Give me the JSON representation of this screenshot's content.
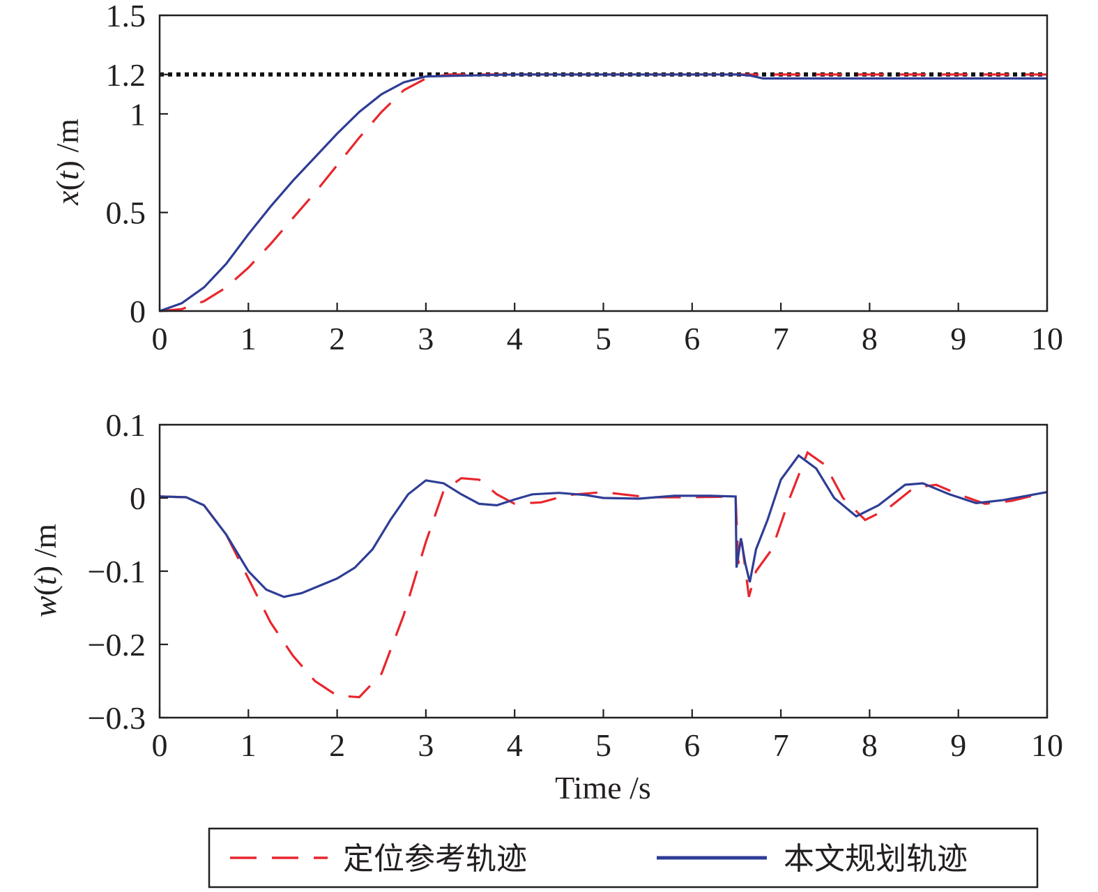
{
  "chart_data": [
    {
      "type": "line",
      "title": "",
      "xlabel": "",
      "ylabel": "x(t) /m",
      "ylabel_parts": {
        "var": "x",
        "open": "(",
        "arg": "t",
        "close": ")",
        "unit": " /m"
      },
      "xlim": [
        0,
        10
      ],
      "ylim": [
        0,
        1.5
      ],
      "x_ticks": [
        0,
        1,
        2,
        3,
        4,
        5,
        6,
        7,
        8,
        9,
        10
      ],
      "x_tick_labels": [
        "0",
        "1",
        "2",
        "3",
        "4",
        "5",
        "6",
        "7",
        "8",
        "9",
        "10"
      ],
      "y_ticks": [
        0,
        0.5,
        1,
        1.2,
        1.5
      ],
      "y_tick_labels": [
        "0",
        "0.5",
        "1",
        "1.2",
        "1.5"
      ],
      "reference_line": {
        "y": 1.2,
        "style": "dotted",
        "color": "#111111"
      },
      "series": [
        {
          "name": "定位参考轨迹",
          "style": "dashed",
          "color": "#e8262e",
          "points": [
            [
              0,
              0
            ],
            [
              0.25,
              0.01
            ],
            [
              0.5,
              0.05
            ],
            [
              0.75,
              0.12
            ],
            [
              1.0,
              0.22
            ],
            [
              1.25,
              0.34
            ],
            [
              1.5,
              0.47
            ],
            [
              1.75,
              0.6
            ],
            [
              2.0,
              0.74
            ],
            [
              2.25,
              0.88
            ],
            [
              2.5,
              1.01
            ],
            [
              2.75,
              1.12
            ],
            [
              3.0,
              1.18
            ],
            [
              3.25,
              1.2
            ],
            [
              3.5,
              1.2
            ],
            [
              4.0,
              1.2
            ],
            [
              5.0,
              1.2
            ],
            [
              6.0,
              1.2
            ],
            [
              6.5,
              1.2
            ],
            [
              6.7,
              1.2
            ],
            [
              7.0,
              1.2
            ],
            [
              8.0,
              1.2
            ],
            [
              9.0,
              1.2
            ],
            [
              10.0,
              1.2
            ]
          ]
        },
        {
          "name": "本文规划轨迹",
          "style": "solid",
          "color": "#2e3d95",
          "points": [
            [
              0,
              0
            ],
            [
              0.25,
              0.04
            ],
            [
              0.5,
              0.12
            ],
            [
              0.75,
              0.24
            ],
            [
              1.0,
              0.39
            ],
            [
              1.25,
              0.53
            ],
            [
              1.5,
              0.66
            ],
            [
              1.75,
              0.78
            ],
            [
              2.0,
              0.9
            ],
            [
              2.25,
              1.01
            ],
            [
              2.5,
              1.1
            ],
            [
              2.75,
              1.16
            ],
            [
              3.0,
              1.19
            ],
            [
              3.5,
              1.195
            ],
            [
              4.0,
              1.2
            ],
            [
              4.5,
              1.2
            ],
            [
              5.0,
              1.2
            ],
            [
              5.5,
              1.2
            ],
            [
              6.0,
              1.2
            ],
            [
              6.5,
              1.2
            ],
            [
              6.65,
              1.195
            ],
            [
              6.8,
              1.18
            ],
            [
              7.0,
              1.18
            ],
            [
              8.0,
              1.18
            ],
            [
              9.0,
              1.18
            ],
            [
              10.0,
              1.18
            ]
          ]
        }
      ]
    },
    {
      "type": "line",
      "title": "",
      "xlabel": "Time /s",
      "ylabel": "w(t) /m",
      "ylabel_parts": {
        "var": "w",
        "open": "(",
        "arg": "t",
        "close": ")",
        "unit": " /m"
      },
      "xlim": [
        0,
        10
      ],
      "ylim": [
        -0.3,
        0.1
      ],
      "x_ticks": [
        0,
        1,
        2,
        3,
        4,
        5,
        6,
        7,
        8,
        9,
        10
      ],
      "x_tick_labels": [
        "0",
        "1",
        "2",
        "3",
        "4",
        "5",
        "6",
        "7",
        "8",
        "9",
        "10"
      ],
      "y_ticks": [
        -0.3,
        -0.2,
        -0.1,
        0,
        0.1
      ],
      "y_tick_labels": [
        "−0.3",
        "−0.2",
        "−0.1",
        "0",
        "0.1"
      ],
      "series": [
        {
          "name": "定位参考轨迹",
          "style": "dashed",
          "color": "#e8262e",
          "points": [
            [
              0,
              0.002
            ],
            [
              0.3,
              0.001
            ],
            [
              0.5,
              -0.01
            ],
            [
              0.75,
              -0.05
            ],
            [
              1.0,
              -0.11
            ],
            [
              1.25,
              -0.17
            ],
            [
              1.5,
              -0.215
            ],
            [
              1.75,
              -0.25
            ],
            [
              2.0,
              -0.27
            ],
            [
              2.25,
              -0.272
            ],
            [
              2.5,
              -0.24
            ],
            [
              2.75,
              -0.16
            ],
            [
              3.0,
              -0.06
            ],
            [
              3.2,
              0.01
            ],
            [
              3.4,
              0.027
            ],
            [
              3.6,
              0.025
            ],
            [
              3.8,
              0.005
            ],
            [
              4.0,
              -0.008
            ],
            [
              4.3,
              -0.006
            ],
            [
              4.6,
              0.004
            ],
            [
              5.0,
              0.008
            ],
            [
              5.5,
              0.001
            ],
            [
              6.0,
              0.001
            ],
            [
              6.49,
              0.002
            ],
            [
              6.52,
              -0.09
            ],
            [
              6.56,
              -0.06
            ],
            [
              6.64,
              -0.135
            ],
            [
              6.72,
              -0.1
            ],
            [
              6.9,
              -0.07
            ],
            [
              7.1,
              0.0
            ],
            [
              7.3,
              0.062
            ],
            [
              7.5,
              0.045
            ],
            [
              7.7,
              0.0
            ],
            [
              7.95,
              -0.03
            ],
            [
              8.2,
              -0.015
            ],
            [
              8.5,
              0.014
            ],
            [
              8.75,
              0.018
            ],
            [
              9.0,
              0.005
            ],
            [
              9.3,
              -0.008
            ],
            [
              9.6,
              -0.004
            ],
            [
              10.0,
              0.008
            ]
          ]
        },
        {
          "name": "本文规划轨迹",
          "style": "solid",
          "color": "#2e3d95",
          "points": [
            [
              0,
              0.002
            ],
            [
              0.3,
              0.001
            ],
            [
              0.5,
              -0.01
            ],
            [
              0.75,
              -0.05
            ],
            [
              1.0,
              -0.1
            ],
            [
              1.2,
              -0.125
            ],
            [
              1.4,
              -0.135
            ],
            [
              1.6,
              -0.13
            ],
            [
              1.8,
              -0.12
            ],
            [
              2.0,
              -0.11
            ],
            [
              2.2,
              -0.095
            ],
            [
              2.4,
              -0.07
            ],
            [
              2.6,
              -0.03
            ],
            [
              2.8,
              0.005
            ],
            [
              3.0,
              0.024
            ],
            [
              3.2,
              0.02
            ],
            [
              3.4,
              0.005
            ],
            [
              3.6,
              -0.008
            ],
            [
              3.8,
              -0.01
            ],
            [
              4.0,
              -0.002
            ],
            [
              4.2,
              0.005
            ],
            [
              4.5,
              0.007
            ],
            [
              4.8,
              0.004
            ],
            [
              5.0,
              0.0
            ],
            [
              5.4,
              -0.001
            ],
            [
              5.8,
              0.003
            ],
            [
              6.2,
              0.003
            ],
            [
              6.49,
              0.002
            ],
            [
              6.5,
              -0.095
            ],
            [
              6.55,
              -0.055
            ],
            [
              6.6,
              -0.09
            ],
            [
              6.65,
              -0.115
            ],
            [
              6.72,
              -0.07
            ],
            [
              6.85,
              -0.03
            ],
            [
              7.0,
              0.025
            ],
            [
              7.2,
              0.058
            ],
            [
              7.4,
              0.04
            ],
            [
              7.6,
              0.0
            ],
            [
              7.85,
              -0.025
            ],
            [
              8.1,
              -0.01
            ],
            [
              8.4,
              0.018
            ],
            [
              8.6,
              0.02
            ],
            [
              8.9,
              0.005
            ],
            [
              9.2,
              -0.007
            ],
            [
              9.5,
              -0.003
            ],
            [
              10.0,
              0.008
            ]
          ]
        }
      ]
    }
  ],
  "legend": {
    "placement": "bottom",
    "items": [
      {
        "label": "定位参考轨迹",
        "style": "dashed",
        "color": "#e8262e"
      },
      {
        "label": "本文规划轨迹",
        "style": "solid",
        "color": "#2e3d95"
      }
    ]
  }
}
